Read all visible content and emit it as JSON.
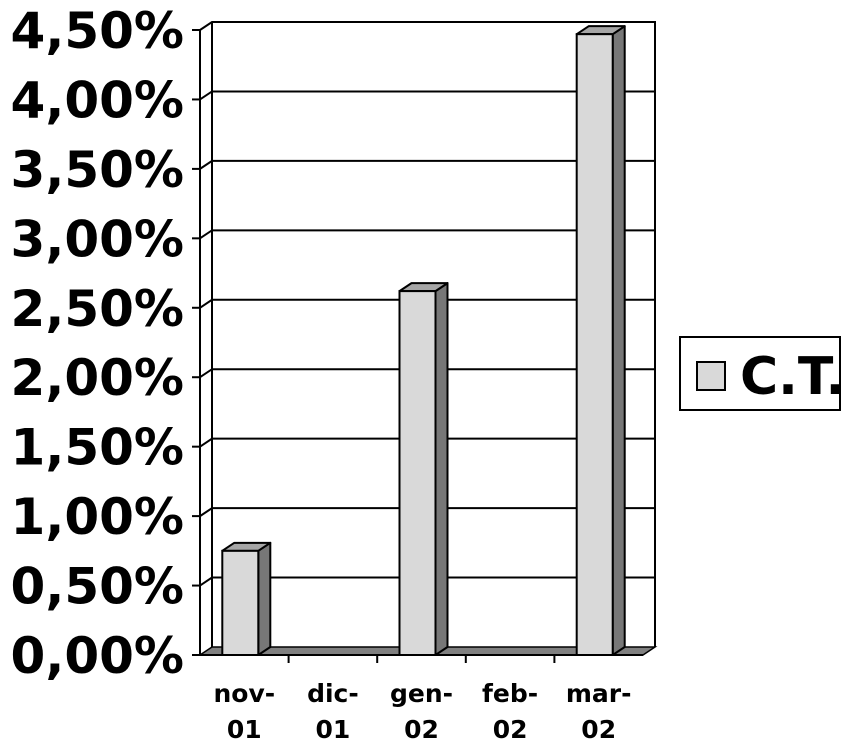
{
  "chart_data": {
    "type": "bar",
    "categories": [
      [
        "nov-",
        "01"
      ],
      [
        "dic-",
        "01"
      ],
      [
        "gen-",
        "02"
      ],
      [
        "feb-",
        "02"
      ],
      [
        "mar-",
        "02"
      ]
    ],
    "series": [
      {
        "name": "C.T.",
        "values": [
          0.75,
          0,
          2.62,
          0,
          4.47
        ]
      }
    ],
    "ylim": [
      0,
      4.5
    ],
    "yticks": [
      "0,00%",
      "0,50%",
      "1,00%",
      "1,50%",
      "2,00%",
      "2,50%",
      "3,00%",
      "3,50%",
      "4,00%",
      "4,50%"
    ],
    "grid": true,
    "legend_position": "right",
    "colors": {
      "bar_face": "#d9d9d9",
      "bar_side": "#777777",
      "bar_top": "#a6a6a6",
      "floor": "#808080",
      "grid": "#000000"
    }
  }
}
